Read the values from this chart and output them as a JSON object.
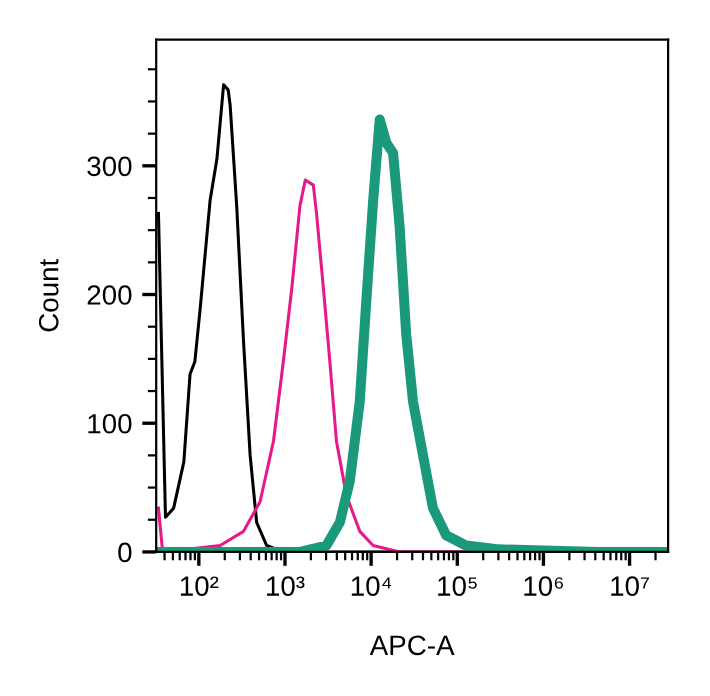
{
  "chart_data": {
    "type": "line",
    "xlabel": "APC-A",
    "ylabel": "Count",
    "log": "x",
    "xlim": [
      32,
      28000000
    ],
    "ylim": [
      0,
      398
    ],
    "xticks": [
      {
        "value": 100,
        "label": "10²"
      },
      {
        "value": 1000,
        "label": "10³"
      },
      {
        "value": 10000,
        "label": "10⁴"
      },
      {
        "value": 100000,
        "label": "10⁵"
      },
      {
        "value": 1000000,
        "label": "10⁶"
      },
      {
        "value": 10000000,
        "label": "10⁷"
      }
    ],
    "yticks": [
      0,
      100,
      200,
      300
    ],
    "grid": false,
    "legend": false,
    "marker": "none",
    "line_style": "solid",
    "series": [
      {
        "color": "#000000",
        "x": [
          34,
          41,
          51,
          67,
          79,
          90,
          104,
          135,
          162,
          194,
          219,
          231,
          275,
          330,
          394,
          469,
          612,
          957,
          28000000
        ],
        "values": [
          263,
          27,
          34,
          70,
          138,
          148,
          190,
          273,
          305,
          363,
          359,
          347,
          269,
          164,
          75,
          23,
          5,
          0,
          0
        ]
      },
      {
        "color": "#e6198c",
        "x": [
          34,
          38,
          177,
          330,
          514,
          735,
          957,
          1205,
          1492,
          1722,
          2133,
          2323,
          2782,
          3316,
          3958,
          5162,
          7379,
          10550,
          21400,
          28000000
        ],
        "values": [
          34,
          0,
          5,
          16,
          39,
          86,
          148,
          206,
          269,
          289,
          285,
          263,
          206,
          148,
          86,
          44,
          16,
          5,
          0,
          0
        ]
      },
      {
        "color": "#1a9a7a",
        "x": [
          34,
          1492,
          3027,
          4335,
          5653,
          7379,
          8790,
          10550,
          12580,
          15000,
          17980,
          21400,
          25550,
          30600,
          40000,
          52200,
          74200,
          126000,
          308000,
          4400000,
          27000000
        ],
        "values": [
          0,
          0,
          5,
          23,
          55,
          117,
          195,
          273,
          336,
          318,
          310,
          253,
          169,
          117,
          75,
          34,
          13,
          5,
          2,
          0,
          0
        ]
      }
    ]
  }
}
